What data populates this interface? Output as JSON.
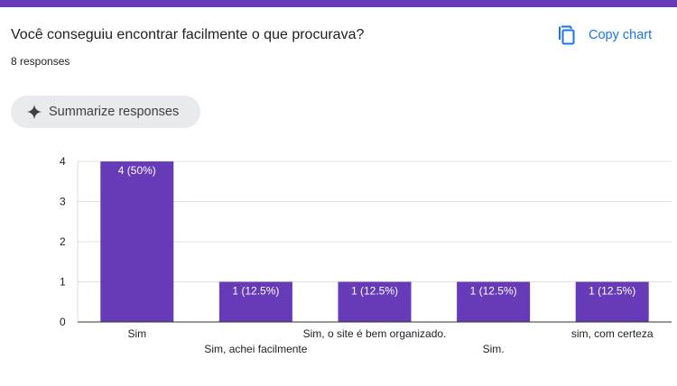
{
  "question": {
    "title": "Você conseguiu encontrar facilmente o que procurava?",
    "responses_count": "8 responses"
  },
  "toolbar": {
    "copy_chart_label": "Copy chart",
    "copy_icon": "copy-icon"
  },
  "summarize": {
    "label": "Summarize responses",
    "icon": "sparkle-icon"
  },
  "colors": {
    "accent": "#673ab7",
    "bar": "#673ab7",
    "link": "#1a73e8"
  },
  "chart_data": {
    "type": "bar",
    "categories": [
      "Sim",
      "Sim, achei facilmente",
      "Sim, o site é bem organizado.",
      "Sim.",
      "sim, com certeza"
    ],
    "values": [
      4,
      1,
      1,
      1,
      1
    ],
    "bar_labels": [
      "4 (50%)",
      "1 (12.5%)",
      "1 (12.5%)",
      "1 (12.5%)",
      "1 (12.5%)"
    ],
    "yticks": [
      0,
      1,
      2,
      3,
      4
    ],
    "ylim": [
      0,
      4
    ],
    "grid": true
  }
}
